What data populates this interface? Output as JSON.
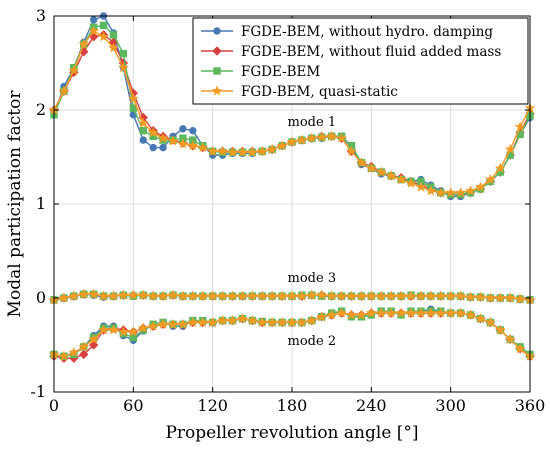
{
  "chart_data": {
    "type": "line",
    "xlabel": "Propeller revolution angle [°]",
    "ylabel": "Modal participation factor",
    "xlim": [
      0,
      360
    ],
    "ylim": [
      -1,
      3
    ],
    "xticks": [
      "0",
      "60",
      "120",
      "180",
      "240",
      "300",
      "360"
    ],
    "xtick_values": [
      0,
      60,
      120,
      180,
      240,
      300,
      360
    ],
    "yticks": [
      "-1",
      "0",
      "1",
      "2",
      "3"
    ],
    "ytick_values": [
      -1,
      0,
      1,
      2,
      3
    ],
    "grid": true,
    "legend_position": "top-right",
    "annotations": [
      {
        "text": "mode 1",
        "x": 195,
        "y": 1.83
      },
      {
        "text": "mode 3",
        "x": 195,
        "y": 0.17
      },
      {
        "text": "mode 2",
        "x": 195,
        "y": -0.5
      }
    ],
    "x": [
      0,
      7.5,
      15,
      22.5,
      30,
      37.5,
      45,
      52.5,
      60,
      67.5,
      75,
      82.5,
      90,
      97.5,
      105,
      112.5,
      120,
      127.5,
      135,
      142.5,
      150,
      157.5,
      165,
      172.5,
      180,
      187.5,
      195,
      202.5,
      210,
      217.5,
      225,
      232.5,
      240,
      247.5,
      255,
      262.5,
      270,
      277.5,
      285,
      292.5,
      300,
      307.5,
      315,
      322.5,
      330,
      337.5,
      345,
      352.5,
      360
    ],
    "series": [
      {
        "name": "FGDE-BEM, without hydro. damping",
        "color": "#4878b4",
        "marker": "circle",
        "mode1": [
          1.95,
          2.25,
          2.45,
          2.72,
          2.96,
          3.0,
          2.82,
          2.45,
          1.95,
          1.68,
          1.6,
          1.6,
          1.72,
          1.8,
          1.78,
          1.62,
          1.52,
          1.52,
          1.54,
          1.54,
          1.54,
          1.56,
          1.58,
          1.62,
          1.66,
          1.68,
          1.7,
          1.7,
          1.72,
          1.72,
          1.6,
          1.42,
          1.38,
          1.32,
          1.3,
          1.26,
          1.24,
          1.26,
          1.2,
          1.14,
          1.08,
          1.08,
          1.12,
          1.16,
          1.24,
          1.34,
          1.52,
          1.74,
          1.92
        ],
        "mode2": [
          -0.6,
          -0.62,
          -0.6,
          -0.52,
          -0.4,
          -0.3,
          -0.3,
          -0.4,
          -0.45,
          -0.35,
          -0.28,
          -0.26,
          -0.3,
          -0.3,
          -0.24,
          -0.26,
          -0.26,
          -0.24,
          -0.24,
          -0.22,
          -0.24,
          -0.25,
          -0.26,
          -0.26,
          -0.26,
          -0.26,
          -0.24,
          -0.2,
          -0.16,
          -0.14,
          -0.2,
          -0.2,
          -0.18,
          -0.14,
          -0.14,
          -0.18,
          -0.14,
          -0.14,
          -0.12,
          -0.14,
          -0.16,
          -0.16,
          -0.18,
          -0.22,
          -0.26,
          -0.34,
          -0.44,
          -0.52,
          -0.6
        ],
        "mode3": [
          -0.02,
          0.0,
          0.02,
          0.04,
          0.03,
          0.01,
          0.02,
          0.03,
          0.02,
          0.03,
          0.02,
          0.02,
          0.03,
          0.02,
          0.02,
          0.02,
          0.02,
          0.02,
          0.02,
          0.02,
          0.02,
          0.02,
          0.02,
          0.02,
          0.02,
          0.03,
          0.03,
          0.02,
          0.02,
          0.02,
          0.02,
          0.02,
          0.02,
          0.02,
          0.02,
          0.02,
          0.03,
          0.02,
          0.02,
          0.02,
          0.02,
          0.02,
          0.01,
          0.01,
          0.0,
          0.0,
          0.0,
          -0.01,
          -0.02
        ]
      },
      {
        "name": "FGDE-BEM, without fluid added mass",
        "color": "#d93f3f",
        "marker": "diamond",
        "mode1": [
          2.0,
          2.2,
          2.4,
          2.62,
          2.78,
          2.8,
          2.72,
          2.5,
          2.18,
          1.92,
          1.78,
          1.72,
          1.68,
          1.65,
          1.62,
          1.6,
          1.56,
          1.56,
          1.56,
          1.56,
          1.56,
          1.56,
          1.58,
          1.62,
          1.66,
          1.68,
          1.7,
          1.72,
          1.72,
          1.7,
          1.56,
          1.44,
          1.4,
          1.34,
          1.3,
          1.28,
          1.24,
          1.2,
          1.16,
          1.12,
          1.1,
          1.1,
          1.12,
          1.16,
          1.24,
          1.34,
          1.52,
          1.76,
          1.96
        ],
        "mode2": [
          -0.62,
          -0.64,
          -0.64,
          -0.6,
          -0.5,
          -0.34,
          -0.32,
          -0.34,
          -0.36,
          -0.32,
          -0.3,
          -0.28,
          -0.28,
          -0.28,
          -0.26,
          -0.26,
          -0.26,
          -0.24,
          -0.24,
          -0.22,
          -0.24,
          -0.26,
          -0.26,
          -0.26,
          -0.26,
          -0.26,
          -0.24,
          -0.2,
          -0.18,
          -0.16,
          -0.18,
          -0.18,
          -0.16,
          -0.16,
          -0.16,
          -0.16,
          -0.16,
          -0.16,
          -0.16,
          -0.16,
          -0.16,
          -0.16,
          -0.18,
          -0.22,
          -0.26,
          -0.34,
          -0.44,
          -0.54,
          -0.62
        ],
        "mode3": [
          -0.02,
          0.0,
          0.02,
          0.04,
          0.04,
          0.02,
          0.02,
          0.03,
          0.03,
          0.03,
          0.02,
          0.02,
          0.03,
          0.02,
          0.02,
          0.02,
          0.02,
          0.02,
          0.02,
          0.02,
          0.02,
          0.02,
          0.02,
          0.02,
          0.02,
          0.02,
          0.03,
          0.03,
          0.02,
          0.02,
          0.02,
          0.02,
          0.02,
          0.02,
          0.02,
          0.02,
          0.02,
          0.02,
          0.02,
          0.02,
          0.02,
          0.02,
          0.01,
          0.01,
          0.0,
          0.0,
          0.0,
          -0.01,
          -0.02
        ]
      },
      {
        "name": "FGDE-BEM",
        "color": "#5cb85c",
        "marker": "square",
        "mode1": [
          1.95,
          2.2,
          2.45,
          2.7,
          2.88,
          2.9,
          2.8,
          2.6,
          2.02,
          1.78,
          1.72,
          1.68,
          1.68,
          1.7,
          1.68,
          1.62,
          1.56,
          1.55,
          1.55,
          1.55,
          1.55,
          1.56,
          1.58,
          1.62,
          1.66,
          1.68,
          1.7,
          1.71,
          1.72,
          1.72,
          1.62,
          1.44,
          1.38,
          1.34,
          1.3,
          1.26,
          1.24,
          1.24,
          1.18,
          1.12,
          1.1,
          1.1,
          1.12,
          1.16,
          1.24,
          1.34,
          1.52,
          1.74,
          1.94
        ],
        "mode2": [
          -0.6,
          -0.62,
          -0.6,
          -0.52,
          -0.42,
          -0.32,
          -0.32,
          -0.38,
          -0.42,
          -0.34,
          -0.28,
          -0.26,
          -0.28,
          -0.28,
          -0.24,
          -0.24,
          -0.26,
          -0.24,
          -0.24,
          -0.22,
          -0.24,
          -0.25,
          -0.26,
          -0.26,
          -0.26,
          -0.26,
          -0.24,
          -0.2,
          -0.16,
          -0.14,
          -0.2,
          -0.2,
          -0.18,
          -0.14,
          -0.14,
          -0.18,
          -0.14,
          -0.14,
          -0.14,
          -0.14,
          -0.16,
          -0.16,
          -0.18,
          -0.22,
          -0.26,
          -0.34,
          -0.44,
          -0.52,
          -0.6
        ],
        "mode3": [
          -0.02,
          0.0,
          0.02,
          0.04,
          0.04,
          0.02,
          0.02,
          0.03,
          0.02,
          0.03,
          0.02,
          0.02,
          0.03,
          0.02,
          0.02,
          0.02,
          0.02,
          0.02,
          0.02,
          0.02,
          0.02,
          0.02,
          0.02,
          0.02,
          0.02,
          0.03,
          0.03,
          0.02,
          0.02,
          0.02,
          0.02,
          0.02,
          0.02,
          0.02,
          0.02,
          0.02,
          0.03,
          0.02,
          0.02,
          0.02,
          0.02,
          0.02,
          0.01,
          0.01,
          0.0,
          0.0,
          0.0,
          -0.01,
          -0.02
        ]
      },
      {
        "name": "FGD-BEM, quasi-static",
        "color": "#f59a23",
        "marker": "star",
        "mode1": [
          2.0,
          2.2,
          2.42,
          2.7,
          2.84,
          2.78,
          2.66,
          2.45,
          2.12,
          1.86,
          1.76,
          1.7,
          1.67,
          1.64,
          1.62,
          1.6,
          1.56,
          1.56,
          1.55,
          1.55,
          1.55,
          1.56,
          1.58,
          1.62,
          1.66,
          1.68,
          1.7,
          1.71,
          1.72,
          1.7,
          1.56,
          1.44,
          1.38,
          1.34,
          1.3,
          1.26,
          1.22,
          1.18,
          1.14,
          1.12,
          1.12,
          1.12,
          1.14,
          1.18,
          1.26,
          1.38,
          1.58,
          1.82,
          2.02
        ],
        "mode2": [
          -0.6,
          -0.62,
          -0.58,
          -0.52,
          -0.44,
          -0.34,
          -0.34,
          -0.36,
          -0.36,
          -0.32,
          -0.3,
          -0.28,
          -0.28,
          -0.28,
          -0.26,
          -0.26,
          -0.26,
          -0.24,
          -0.24,
          -0.22,
          -0.24,
          -0.26,
          -0.26,
          -0.26,
          -0.26,
          -0.26,
          -0.24,
          -0.2,
          -0.18,
          -0.16,
          -0.18,
          -0.18,
          -0.16,
          -0.16,
          -0.16,
          -0.16,
          -0.16,
          -0.16,
          -0.16,
          -0.16,
          -0.16,
          -0.16,
          -0.18,
          -0.22,
          -0.26,
          -0.34,
          -0.44,
          -0.54,
          -0.62
        ],
        "mode3": [
          -0.02,
          0.0,
          0.02,
          0.04,
          0.04,
          0.02,
          0.02,
          0.03,
          0.03,
          0.03,
          0.02,
          0.02,
          0.03,
          0.02,
          0.02,
          0.02,
          0.02,
          0.02,
          0.02,
          0.02,
          0.02,
          0.02,
          0.02,
          0.02,
          0.02,
          0.02,
          0.03,
          0.03,
          0.02,
          0.02,
          0.02,
          0.02,
          0.02,
          0.02,
          0.02,
          0.02,
          0.02,
          0.02,
          0.02,
          0.02,
          0.02,
          0.02,
          0.01,
          0.01,
          0.0,
          0.0,
          0.0,
          -0.01,
          -0.02
        ]
      }
    ]
  }
}
